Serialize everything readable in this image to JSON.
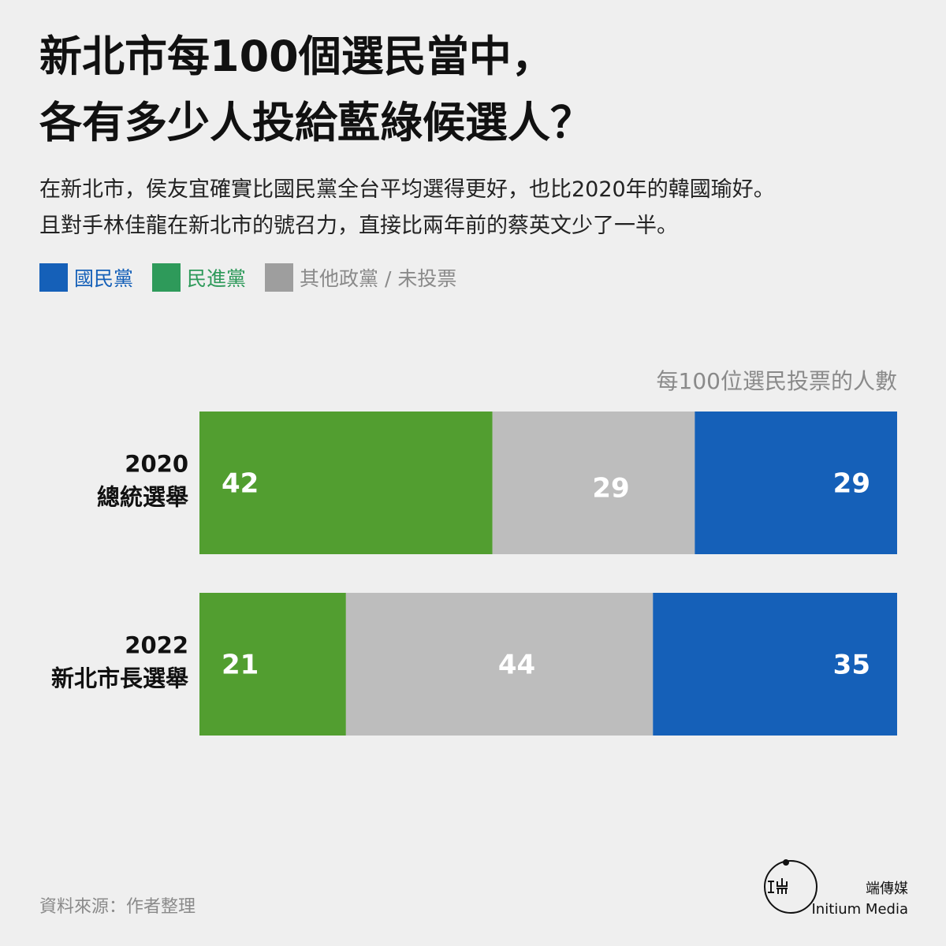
{
  "title": {
    "line1": "新北市每100個選民當中，",
    "line2": "各有多少人投給藍綠候選人？"
  },
  "subtitle": {
    "line1": "在新北市，侯友宜確實比國民黨全台平均選得更好，也比2020年的韓國瑜好。",
    "line2": "且對手林佳龍在新北市的號召力，直接比兩年前的蔡英文少了一半。"
  },
  "legend": [
    {
      "label": "國民黨",
      "color": "#1560b8"
    },
    {
      "label": "民進黨",
      "color": "#2e9a5a"
    },
    {
      "label": "其他政黨 / 未投票",
      "color": "#9e9e9e"
    }
  ],
  "unit_label": "每100位選民投票的人數",
  "chart_data": {
    "type": "bar",
    "orientation": "horizontal-stacked",
    "categories": [
      [
        "2020",
        "總統選舉"
      ],
      [
        "2022",
        "新北市長選舉"
      ]
    ],
    "series": [
      {
        "name": "民進黨",
        "color": "#529e30",
        "values": [
          42,
          21
        ]
      },
      {
        "name": "其他政黨 / 未投票",
        "color": "#bdbdbd",
        "values": [
          29,
          44
        ]
      },
      {
        "name": "國民黨",
        "color": "#1560b8",
        "values": [
          29,
          35
        ]
      }
    ],
    "xlim": [
      0,
      100
    ],
    "grid": false,
    "legend_position": "top-left",
    "title": "新北市每100個選民當中，各有多少人投給藍綠候選人？"
  },
  "source": "資料來源：作者整理",
  "brand": {
    "name_zh": "端傳媒",
    "name_en": "Initium Media"
  }
}
